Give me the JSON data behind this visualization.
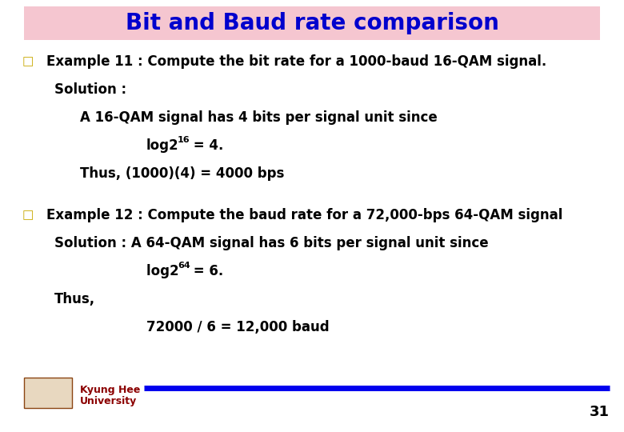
{
  "title": "Bit and Baud rate comparison",
  "title_color": "#0000CD",
  "title_bg_color": "#F5C6D0",
  "title_fontsize": 20,
  "body_color": "#000000",
  "bullet_color": "#C8A800",
  "line1": "Example 11 : Compute the bit rate for a 1000-baud 16-QAM signal.",
  "line2": "Solution :",
  "line3": "A 16-QAM signal has 4 bits per signal unit since",
  "line4_base": "log2",
  "line4_sup": "16",
  "line4_rest": " = 4.",
  "line5": "Thus, (1000)(4) = 4000 bps",
  "line6": "Example 12 : Compute the baud rate for a 72,000-bps 64-QAM signal",
  "line7": "Solution : A 64-QAM signal has 6 bits per signal unit since",
  "line8_base": "log2 ",
  "line8_sup": "64",
  "line8_rest": " = 6.",
  "line9": "Thus,",
  "line10": "72000 / 6 = 12,000 baud",
  "footer_color": "#8B0000",
  "page_num": "31",
  "bar_color": "#0000EE",
  "bg_color": "#FFFFFF"
}
